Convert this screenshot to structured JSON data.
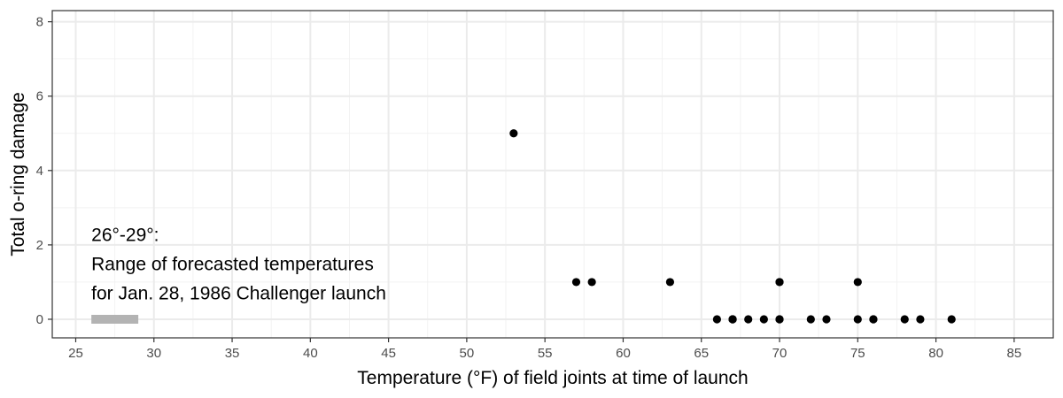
{
  "chart_data": {
    "type": "scatter",
    "title": "",
    "xlabel": "Temperature (°F) of field joints at time of launch",
    "ylabel": "Total o-ring damage",
    "xlim": [
      23.5,
      87.5
    ],
    "ylim": [
      -0.5,
      8.3
    ],
    "x_ticks": [
      25,
      30,
      35,
      40,
      45,
      50,
      55,
      60,
      65,
      70,
      75,
      80,
      85
    ],
    "y_ticks": [
      0,
      2,
      4,
      6,
      8
    ],
    "grid": true,
    "legend": "none",
    "point_color": "#000000",
    "points": [
      {
        "x": 53,
        "y": 5
      },
      {
        "x": 57,
        "y": 1
      },
      {
        "x": 58,
        "y": 1
      },
      {
        "x": 63,
        "y": 1
      },
      {
        "x": 66,
        "y": 0
      },
      {
        "x": 67,
        "y": 0
      },
      {
        "x": 67,
        "y": 0
      },
      {
        "x": 67,
        "y": 0
      },
      {
        "x": 68,
        "y": 0
      },
      {
        "x": 69,
        "y": 0
      },
      {
        "x": 70,
        "y": 0
      },
      {
        "x": 70,
        "y": 0
      },
      {
        "x": 70,
        "y": 1
      },
      {
        "x": 70,
        "y": 1
      },
      {
        "x": 72,
        "y": 0
      },
      {
        "x": 73,
        "y": 0
      },
      {
        "x": 75,
        "y": 0
      },
      {
        "x": 75,
        "y": 1
      },
      {
        "x": 76,
        "y": 0
      },
      {
        "x": 76,
        "y": 0
      },
      {
        "x": 78,
        "y": 0
      },
      {
        "x": 79,
        "y": 0
      },
      {
        "x": 81,
        "y": 0
      }
    ],
    "forecast_range": {
      "x_start": 26,
      "x_end": 29,
      "y": 0,
      "color": "#b3b3b3"
    },
    "annotation": {
      "lines": [
        "26°-29°:",
        "Range of forecasted temperatures",
        "for Jan. 28, 1986 Challenger launch"
      ],
      "x": 26,
      "y": 2.1
    }
  }
}
